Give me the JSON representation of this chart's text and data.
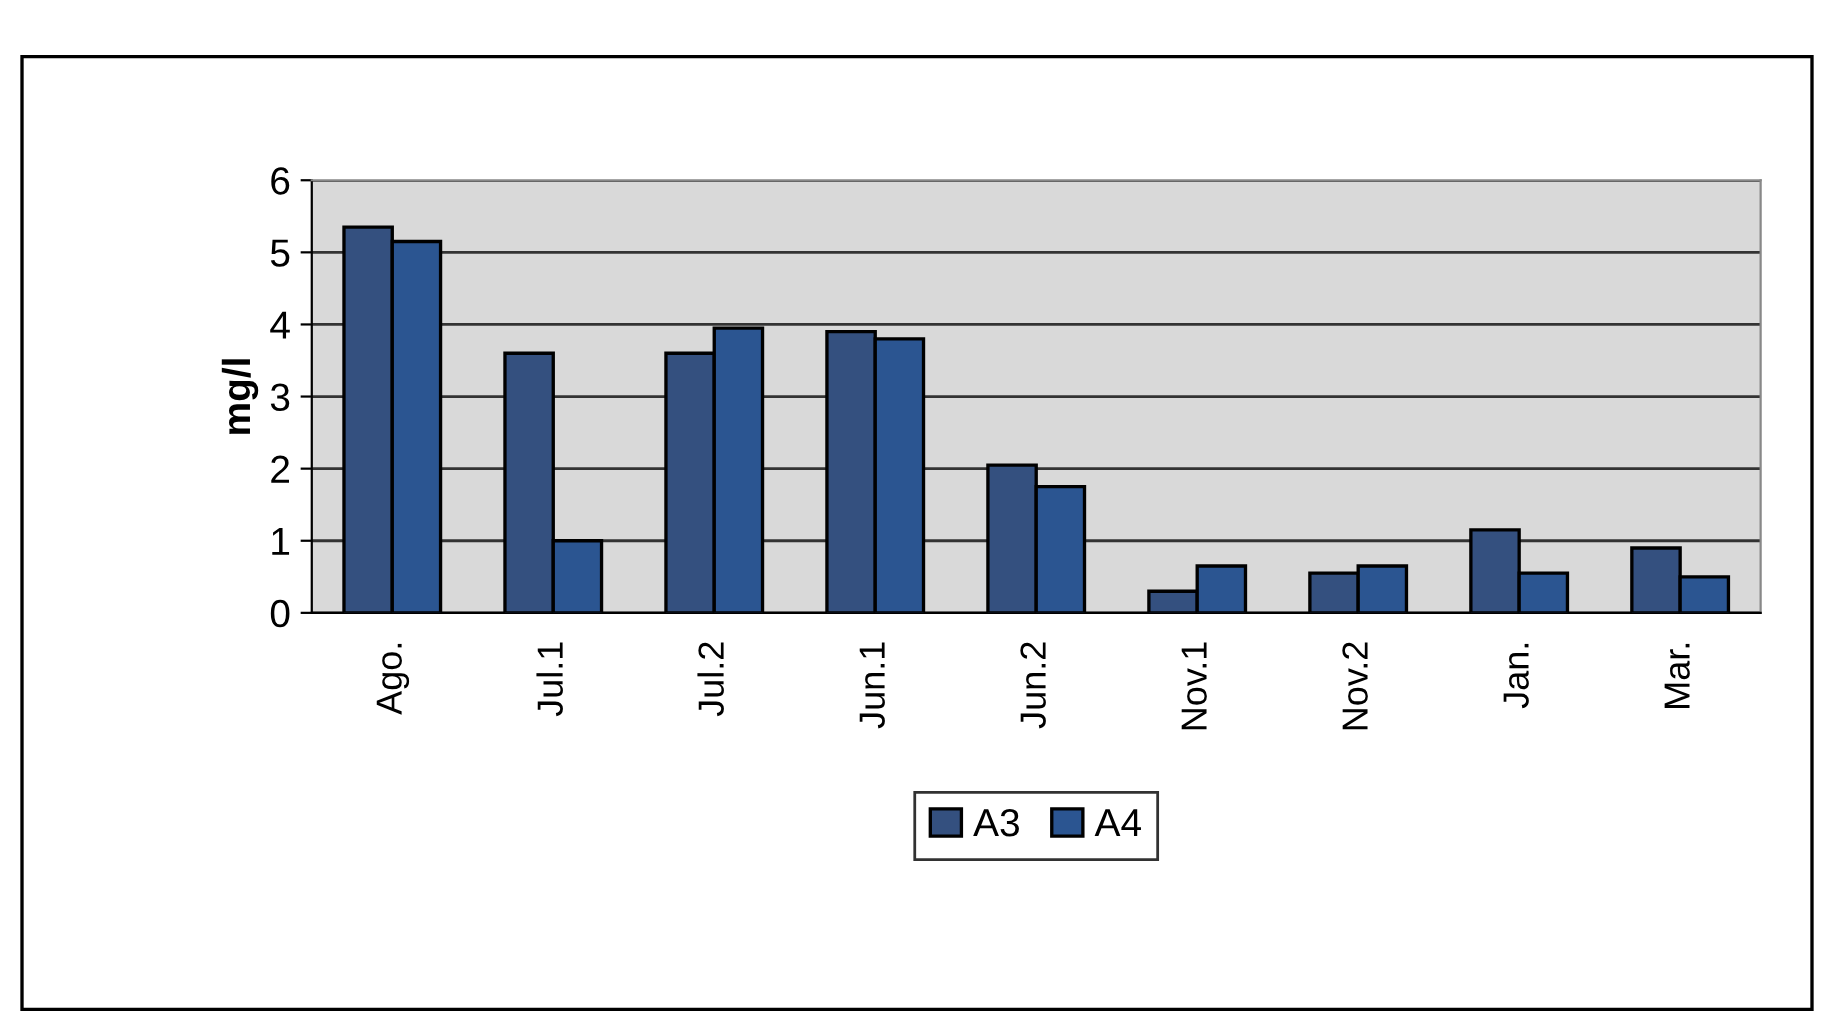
{
  "chart_data": {
    "type": "bar",
    "ylabel": "mg/l",
    "categories": [
      "Ago.",
      "Jul.1",
      "Jul.2",
      "Jun.1",
      "Jun.2",
      "Nov.1",
      "Nov.2",
      "Jan.",
      "Mar."
    ],
    "series": [
      {
        "name": "A3",
        "color": "#34507f",
        "values": [
          5.35,
          3.6,
          3.6,
          3.9,
          2.05,
          0.3,
          0.55,
          1.15,
          0.9
        ]
      },
      {
        "name": "A4",
        "color": "#2b5591",
        "values": [
          5.15,
          1.0,
          3.95,
          3.8,
          1.75,
          0.65,
          0.65,
          0.55,
          0.5
        ]
      }
    ],
    "ylim": [
      0,
      6
    ],
    "yticks": [
      0,
      1,
      2,
      3,
      4,
      5,
      6
    ],
    "grid": "y",
    "legend": "bottom"
  }
}
